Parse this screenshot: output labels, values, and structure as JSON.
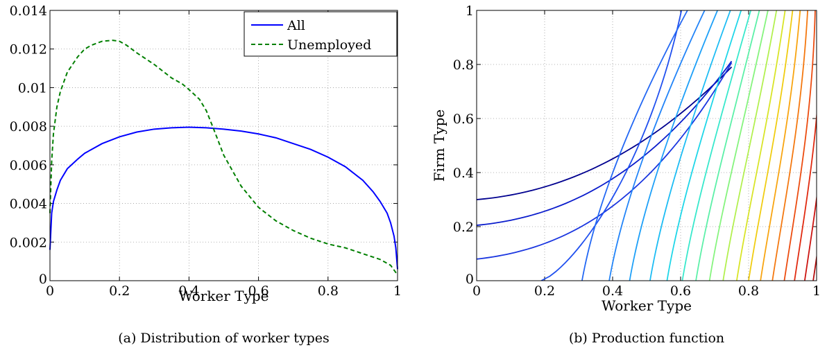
{
  "chart_data": [
    {
      "type": "line",
      "caption": "(a) Distribution of worker types",
      "xlabel": "Worker Type",
      "ylabel": "",
      "xlim": [
        0,
        1
      ],
      "ylim": [
        0,
        0.014
      ],
      "xticks": [
        "0",
        "0.2",
        "0.4",
        "0.6",
        "0.8",
        "1"
      ],
      "yticks": [
        "0",
        "0.002",
        "0.004",
        "0.006",
        "0.008",
        "0.01",
        "0.012",
        "0.014"
      ],
      "grid": true,
      "legend_position": "top-right",
      "series": [
        {
          "name": "All",
          "color": "#0000ff",
          "dash": "solid",
          "x": [
            0,
            0.005,
            0.01,
            0.02,
            0.03,
            0.05,
            0.08,
            0.1,
            0.15,
            0.2,
            0.25,
            0.3,
            0.35,
            0.4,
            0.45,
            0.5,
            0.55,
            0.6,
            0.65,
            0.7,
            0.75,
            0.8,
            0.85,
            0.9,
            0.93,
            0.95,
            0.97,
            0.98,
            0.99,
            0.995,
            1.0
          ],
          "y": [
            0.0016,
            0.0035,
            0.0041,
            0.0047,
            0.0052,
            0.0058,
            0.0063,
            0.0066,
            0.0071,
            0.00745,
            0.0077,
            0.00785,
            0.00792,
            0.00795,
            0.00792,
            0.00785,
            0.00775,
            0.0076,
            0.0074,
            0.0071,
            0.0068,
            0.0064,
            0.0059,
            0.0052,
            0.0046,
            0.0041,
            0.0035,
            0.003,
            0.0023,
            0.0017,
            0.0006
          ]
        },
        {
          "name": "Unemployed",
          "color": "#007f00",
          "dash": "dashed",
          "x": [
            0,
            0.005,
            0.01,
            0.02,
            0.03,
            0.05,
            0.08,
            0.1,
            0.12,
            0.15,
            0.18,
            0.2,
            0.22,
            0.25,
            0.3,
            0.35,
            0.38,
            0.4,
            0.43,
            0.45,
            0.47,
            0.5,
            0.55,
            0.6,
            0.65,
            0.7,
            0.75,
            0.8,
            0.85,
            0.9,
            0.95,
            0.98,
            1.0
          ],
          "y": [
            0.0035,
            0.0062,
            0.0076,
            0.009,
            0.0098,
            0.0108,
            0.0116,
            0.012,
            0.0122,
            0.0124,
            0.01245,
            0.0124,
            0.0122,
            0.0118,
            0.0112,
            0.0105,
            0.0102,
            0.0099,
            0.0094,
            0.0088,
            0.0079,
            0.0065,
            0.0049,
            0.0038,
            0.0031,
            0.0026,
            0.0022,
            0.0019,
            0.0017,
            0.0014,
            0.0011,
            0.0008,
            0.0003
          ]
        }
      ]
    },
    {
      "type": "contour",
      "caption": "(b) Production function",
      "xlabel": "Worker Type",
      "ylabel": "Firm Type",
      "xlim": [
        0,
        1
      ],
      "ylim": [
        0,
        1
      ],
      "xticks": [
        "0",
        "0.2",
        "0.4",
        "0.6",
        "0.8",
        "1"
      ],
      "yticks": [
        "0",
        "0.2",
        "0.4",
        "0.6",
        "0.8",
        "1"
      ],
      "grid": true,
      "colormap": "jet",
      "contours_crossing_left_edge": [
        0.3,
        0.205,
        0.08
      ],
      "contours_crossing_bottom_edge": [
        0.19,
        0.31,
        0.39,
        0.45,
        0.51,
        0.56,
        0.605,
        0.645,
        0.685,
        0.725,
        0.765,
        0.8,
        0.835,
        0.87,
        0.905,
        0.935,
        0.965,
        0.99
      ],
      "colors": [
        "#00008f",
        "#0a1ccc",
        "#1a36e0",
        "#2050ef",
        "#2368f4",
        "#2284f8",
        "#1ea0f8",
        "#1cbcf4",
        "#1ed6e8",
        "#38e8cc",
        "#5cf0a8",
        "#86f47e",
        "#b2f04e",
        "#d8e426",
        "#f0cc10",
        "#f8a410",
        "#f47810",
        "#ec4c10",
        "#e02a10",
        "#cc1410",
        "#b40e0e"
      ]
    }
  ]
}
